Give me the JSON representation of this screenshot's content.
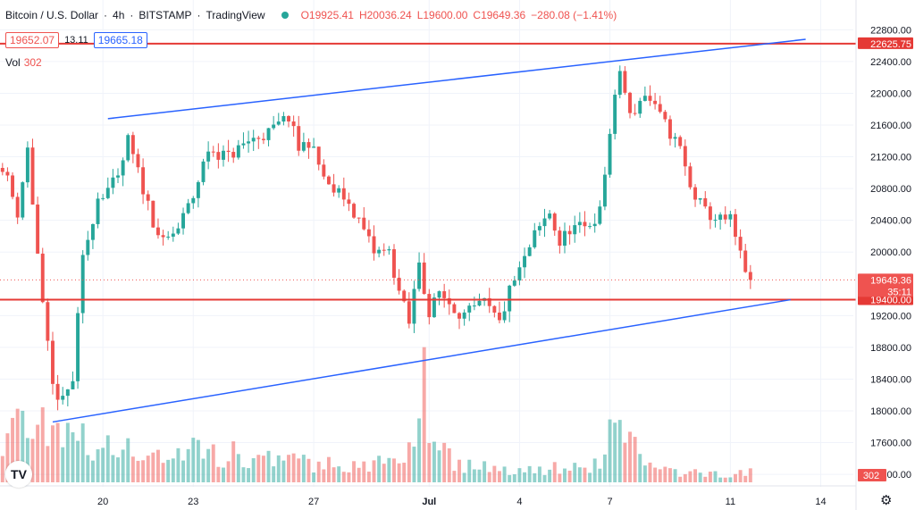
{
  "header": {
    "symbol": "Bitcoin / U.S. Dollar",
    "interval": "4h",
    "exchange": "BITSTAMP",
    "source": "TradingView",
    "status_color": "#26a69a",
    "open": "O19925.41",
    "high": "H20036.24",
    "low": "L19600.00",
    "close": "C19649.36",
    "change": "−280.08 (−1.41%)"
  },
  "quote": {
    "bid": "19652.07",
    "spread": "13.11",
    "ask": "19665.18"
  },
  "volume": {
    "label": "Vol",
    "value": "302",
    "axis_tag": "302"
  },
  "toolbar": {
    "logo_text": "TV",
    "settings_icon": "gear-icon"
  },
  "colors": {
    "up": "#26a69a",
    "down": "#ef5350",
    "up_volume": "#26a69a",
    "down_volume": "#ef5350",
    "trendline": "#2962ff",
    "level_line": "#e53935",
    "current_price": "#ef5350"
  },
  "chart_data": {
    "type": "candlestick",
    "title": "",
    "price_axis": {
      "ticks": [
        22800,
        22400,
        22000,
        21600,
        21200,
        20800,
        20400,
        20000,
        19200,
        18800,
        18400,
        18000,
        17600,
        17200
      ],
      "tick_labels": [
        "22800.00",
        "22400.00",
        "22000.00",
        "21600.00",
        "21200.00",
        "20800.00",
        "20400.00",
        "20000.00",
        "19200.00",
        "18800.00",
        "18400.00",
        "18000.00",
        "17600.00",
        "17200.00"
      ],
      "range": [
        17100,
        22950
      ]
    },
    "time_axis": {
      "labels": [
        "20",
        "23",
        "27",
        "Jul",
        "4",
        "7",
        "11",
        "14"
      ],
      "label_bar_index": [
        20,
        38,
        62,
        85,
        103,
        121,
        145,
        163
      ],
      "bar_count": 150,
      "future_bars": 20
    },
    "horizontal_levels": [
      {
        "price": 22625.75,
        "label": "22625.75"
      },
      {
        "price": 19400.0,
        "label": "19400.00"
      }
    ],
    "current_price": {
      "price": 19649.36,
      "label": "19649.36",
      "countdown": "35:11"
    },
    "trendlines": [
      {
        "from_bar": 21,
        "from_price": 21680,
        "to_bar": 160,
        "to_price": 22680
      },
      {
        "from_bar": 10,
        "from_price": 17860,
        "to_bar": 157,
        "to_price": 19400
      }
    ],
    "price_anchors": [
      [
        0,
        21100
      ],
      [
        3,
        20500
      ],
      [
        5,
        21300
      ],
      [
        8,
        19300
      ],
      [
        10,
        18300
      ],
      [
        12,
        18100
      ],
      [
        14,
        18400
      ],
      [
        16,
        19900
      ],
      [
        19,
        20700
      ],
      [
        23,
        20900
      ],
      [
        25,
        21400
      ],
      [
        27,
        21000
      ],
      [
        30,
        20400
      ],
      [
        32,
        20100
      ],
      [
        35,
        20300
      ],
      [
        38,
        20700
      ],
      [
        41,
        21300
      ],
      [
        45,
        21200
      ],
      [
        49,
        21400
      ],
      [
        53,
        21500
      ],
      [
        57,
        21700
      ],
      [
        59,
        21300
      ],
      [
        61,
        21400
      ],
      [
        63,
        21100
      ],
      [
        65,
        20800
      ],
      [
        68,
        20700
      ],
      [
        71,
        20400
      ],
      [
        74,
        20000
      ],
      [
        77,
        20000
      ],
      [
        79,
        19500
      ],
      [
        81,
        19100
      ],
      [
        83,
        19900
      ],
      [
        85,
        19200
      ],
      [
        87,
        19500
      ],
      [
        90,
        19300
      ],
      [
        92,
        19200
      ],
      [
        96,
        19350
      ],
      [
        99,
        19100
      ],
      [
        101,
        19500
      ],
      [
        104,
        19900
      ],
      [
        106,
        20200
      ],
      [
        109,
        20500
      ],
      [
        111,
        20100
      ],
      [
        113,
        20300
      ],
      [
        116,
        20300
      ],
      [
        119,
        20500
      ],
      [
        121,
        21500
      ],
      [
        123,
        22300
      ],
      [
        125,
        21700
      ],
      [
        128,
        22000
      ],
      [
        130,
        21800
      ],
      [
        132,
        21600
      ],
      [
        135,
        21300
      ],
      [
        137,
        20800
      ],
      [
        140,
        20500
      ],
      [
        143,
        20400
      ],
      [
        145,
        20400
      ],
      [
        147,
        19950
      ],
      [
        149,
        19649.36
      ]
    ],
    "volume_anchors": [
      [
        0,
        60
      ],
      [
        10,
        90
      ],
      [
        11,
        60
      ],
      [
        20,
        40
      ],
      [
        30,
        35
      ],
      [
        40,
        40
      ],
      [
        50,
        30
      ],
      [
        60,
        25
      ],
      [
        70,
        20
      ],
      [
        80,
        25
      ],
      [
        84,
        130
      ],
      [
        86,
        60
      ],
      [
        90,
        25
      ],
      [
        100,
        15
      ],
      [
        110,
        18
      ],
      [
        120,
        25
      ],
      [
        122,
        100
      ],
      [
        126,
        45
      ],
      [
        130,
        15
      ],
      [
        140,
        10
      ],
      [
        149,
        12
      ]
    ]
  }
}
